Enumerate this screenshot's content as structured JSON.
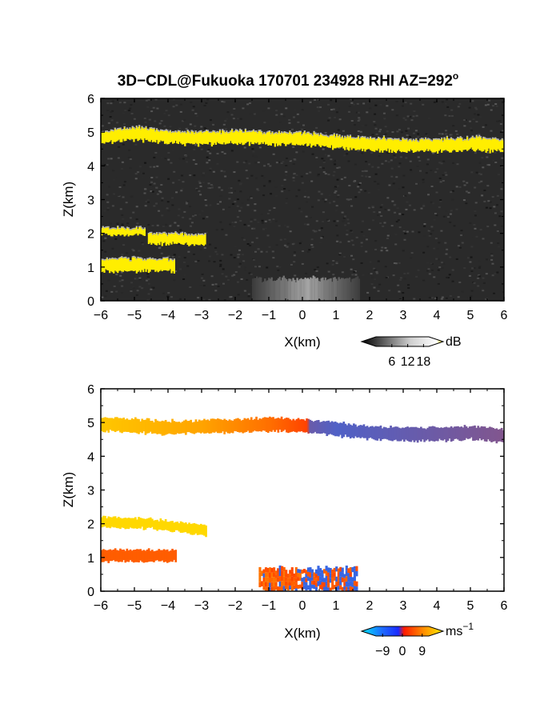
{
  "figure": {
    "title": "3D−CDL@Fukuoka 170701 234928 RHI AZ=292",
    "title_degree": "o"
  },
  "colors": {
    "background": "#ffffff",
    "snr_noise_base": "#2a2a2a",
    "snr_strong": "#ffee00",
    "snr_aerosol": "#b4b4b4",
    "vel_negative": "#1e6cff",
    "vel_zero": "#ff3a00",
    "vel_positive": "#ffd800"
  },
  "chart_data": [
    {
      "type": "heatmap",
      "panel": "top",
      "quantity": "SNR",
      "xlabel": "X(km)",
      "ylabel": "Z(km)",
      "xlim": [
        -6,
        6
      ],
      "ylim": [
        0,
        6
      ],
      "xticks": [
        "−6",
        "−5",
        "−4",
        "−3",
        "−2",
        "−1",
        "0",
        "1",
        "2",
        "3",
        "4",
        "5",
        "6"
      ],
      "yticks": [
        "0",
        "1",
        "2",
        "3",
        "4",
        "5",
        "6"
      ],
      "layers": [
        {
          "name": "cloud layer",
          "x_range": [
            -6,
            6
          ],
          "z_center": [
            [
              -6,
              4.85
            ],
            [
              -5,
              4.95
            ],
            [
              -4,
              4.85
            ],
            [
              -3,
              4.8
            ],
            [
              -2,
              4.85
            ],
            [
              -1,
              4.8
            ],
            [
              0,
              4.8
            ],
            [
              1,
              4.7
            ],
            [
              2,
              4.65
            ],
            [
              3,
              4.6
            ],
            [
              4,
              4.6
            ],
            [
              5,
              4.65
            ],
            [
              6,
              4.6
            ]
          ],
          "thickness_km": 0.35,
          "value_db": 18
        },
        {
          "name": "patch 2km",
          "x_range": [
            -6,
            -4.7
          ],
          "z_center": [
            [
              -6,
              2.05
            ],
            [
              -4.7,
              2.05
            ]
          ],
          "thickness_km": 0.2,
          "value_db": 18
        },
        {
          "name": "patch 1.9km",
          "x_range": [
            -4.6,
            -2.9
          ],
          "z_center": [
            [
              -4.6,
              1.85
            ],
            [
              -2.9,
              1.8
            ]
          ],
          "thickness_km": 0.3,
          "value_db": 18
        },
        {
          "name": "patch 1km",
          "x_range": [
            -6,
            -3.8
          ],
          "z_center": [
            [
              -6,
              1.05
            ],
            [
              -3.8,
              1.05
            ]
          ],
          "thickness_km": 0.35,
          "value_db": 18
        },
        {
          "name": "aerosol",
          "x_range": [
            -1.5,
            1.7
          ],
          "z_center": [
            [
              -1.5,
              0.3
            ],
            [
              1.7,
              0.3
            ]
          ],
          "thickness_km": 0.7,
          "value_db": 8
        }
      ],
      "colorbar": {
        "unit": "dB",
        "ticks": [
          "6",
          "12",
          "18"
        ],
        "range": [
          0,
          20
        ]
      }
    },
    {
      "type": "heatmap",
      "panel": "bottom",
      "quantity": "Doppler velocity",
      "xlabel": "X(km)",
      "ylabel": "Z(km)",
      "xlim": [
        -6,
        6
      ],
      "ylim": [
        0,
        6
      ],
      "xticks": [
        "−6",
        "−5",
        "−4",
        "−3",
        "−2",
        "−1",
        "0",
        "1",
        "2",
        "3",
        "4",
        "5",
        "6"
      ],
      "yticks": [
        "0",
        "1",
        "2",
        "3",
        "4",
        "5",
        "6"
      ],
      "layers": [
        {
          "name": "cloud layer",
          "x_range": [
            -6,
            6
          ],
          "z_center": [
            [
              -6,
              4.95
            ],
            [
              -4,
              4.85
            ],
            [
              -2,
              4.9
            ],
            [
              -1,
              4.95
            ],
            [
              0,
              4.9
            ],
            [
              1,
              4.8
            ],
            [
              2,
              4.7
            ],
            [
              3,
              4.65
            ],
            [
              4,
              4.65
            ],
            [
              5,
              4.7
            ],
            [
              6,
              4.6
            ]
          ],
          "thickness_km": 0.4,
          "velocity_ms": [
            [
              -6,
              8
            ],
            [
              -3,
              6
            ],
            [
              -1,
              3
            ],
            [
              0.1,
              0.5
            ],
            [
              0.2,
              -6
            ],
            [
              1,
              -7
            ],
            [
              6,
              -5
            ]
          ]
        },
        {
          "name": "patch 2km",
          "x_range": [
            -6,
            -2.9
          ],
          "z_center": [
            [
              -6,
              2.05
            ],
            [
              -4.5,
              2.0
            ],
            [
              -2.9,
              1.8
            ]
          ],
          "thickness_km": 0.3,
          "velocity_ms": [
            [
              -6,
              9
            ],
            [
              -2.9,
              9
            ]
          ]
        },
        {
          "name": "patch 1km",
          "x_range": [
            -6,
            -3.8
          ],
          "z_center": [
            [
              -6,
              1.05
            ],
            [
              -3.8,
              1.05
            ]
          ],
          "thickness_km": 0.35,
          "velocity_ms": [
            [
              -6,
              2
            ],
            [
              -3.8,
              2
            ]
          ]
        },
        {
          "name": "aerosol mixed",
          "x_range": [
            -1.3,
            1.6
          ],
          "z_center": [
            [
              -1.3,
              0.35
            ],
            [
              1.6,
              0.35
            ]
          ],
          "thickness_km": 0.7,
          "velocity_ms": [
            [
              -1.3,
              0
            ],
            [
              1.6,
              0
            ]
          ]
        }
      ],
      "colorbar": {
        "unit": "ms",
        "unit_exponent": "−1",
        "ticks": [
          "−9",
          "0",
          "9"
        ],
        "range": [
          -12,
          12
        ]
      }
    }
  ]
}
